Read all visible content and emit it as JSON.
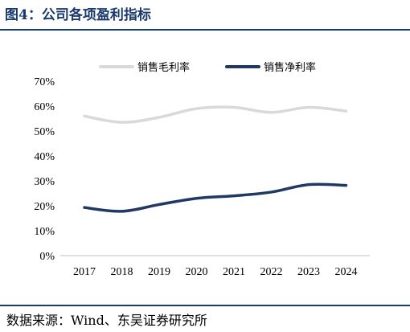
{
  "title": "图4：公司各项盈利指标",
  "source": "数据来源：Wind、东吴证券研究所",
  "colors": {
    "accent": "#1a3a6e",
    "gross_margin": "#d9d9d9",
    "net_margin": "#1f3864"
  },
  "chart_data": {
    "type": "line",
    "x": [
      "2017",
      "2018",
      "2019",
      "2020",
      "2021",
      "2022",
      "2023",
      "2024"
    ],
    "y_ticks": [
      "0%",
      "10%",
      "20%",
      "30%",
      "40%",
      "50%",
      "60%",
      "70%"
    ],
    "ylim": [
      0,
      70
    ],
    "grid": false,
    "legend_position": "top",
    "series": [
      {
        "name": "销售毛利率",
        "color": "#d9d9d9",
        "values": [
          56,
          53.5,
          55.5,
          59,
          59.5,
          57.5,
          59.5,
          58
        ]
      },
      {
        "name": "销售净利率",
        "color": "#1f3864",
        "values": [
          19.3,
          17.8,
          20.5,
          23,
          24,
          25.5,
          28.5,
          28.2
        ]
      }
    ]
  }
}
